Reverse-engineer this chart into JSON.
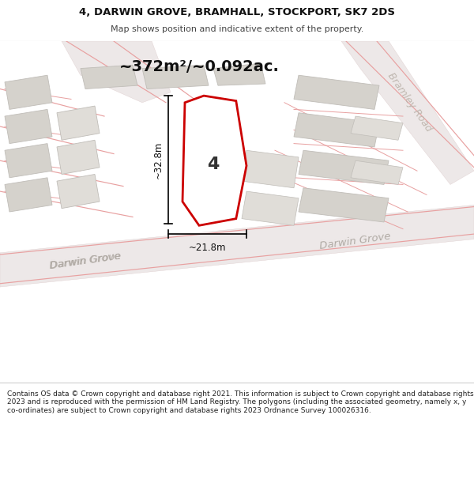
{
  "title_line1": "4, DARWIN GROVE, BRAMHALL, STOCKPORT, SK7 2DS",
  "title_line2": "Map shows position and indicative extent of the property.",
  "area_text": "~372m²/~0.092ac.",
  "property_number": "4",
  "dim_vertical": "~32.8m",
  "dim_horizontal": "~21.8m",
  "footer_text": "Contains OS data © Crown copyright and database right 2021. This information is subject to Crown copyright and database rights 2023 and is reproduced with the permission of HM Land Registry. The polygons (including the associated geometry, namely x, y co-ordinates) are subject to Crown copyright and database rights 2023 Ordnance Survey 100026316.",
  "map_bg": "#f5f3f0",
  "property_color": "#cc0000",
  "property_fill": "#ffffff",
  "road_line_color": "#e8a0a0",
  "building_fill": "#d5d2cc",
  "building_edge": "#c0bdb8",
  "road_label_color": "#b0aaa4",
  "dim_color": "#111111",
  "footer_color": "#222222",
  "title_color": "#111111",
  "subtitle_color": "#444444"
}
